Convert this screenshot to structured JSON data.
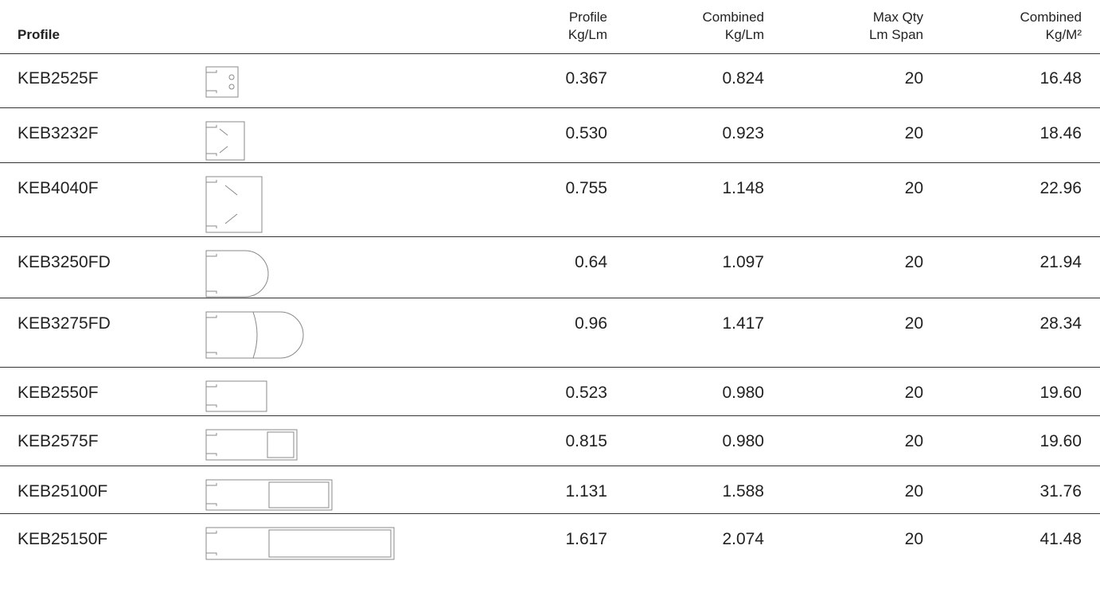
{
  "table": {
    "header": [
      [
        "Profile"
      ],
      [
        "Profile",
        "Kg/Lm"
      ],
      [
        "Combined",
        "Kg/Lm"
      ],
      [
        "Max Qty",
        "Lm Span"
      ],
      [
        "Combined",
        "Kg/M²"
      ]
    ],
    "rows": [
      [
        "KEB2525F",
        "0.367",
        "0.824",
        "20",
        "16.48"
      ],
      [
        "KEB3232F",
        "0.530",
        "0.923",
        "20",
        "18.46"
      ],
      [
        "KEB4040F",
        "0.755",
        "1.148",
        "20",
        "22.96"
      ],
      [
        "KEB3250FD",
        "0.64",
        "1.097",
        "20",
        "21.94"
      ],
      [
        "KEB3275FD",
        "0.96",
        "1.417",
        "20",
        "28.34"
      ],
      [
        "KEB2550F",
        "0.523",
        "0.980",
        "20",
        "19.60"
      ],
      [
        "KEB2575F",
        "0.815",
        "0.980",
        "20",
        "19.60"
      ],
      [
        "KEB25100F",
        "1.131",
        "1.588",
        "20",
        "31.76"
      ],
      [
        "KEB25150F",
        "1.617",
        "2.074",
        "20",
        "41.48"
      ]
    ]
  }
}
